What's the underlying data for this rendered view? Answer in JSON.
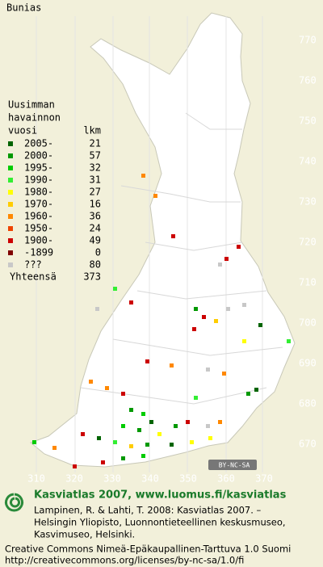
{
  "title": "Bunias",
  "legend": {
    "heading": [
      "Uusimman",
      "havainnon"
    ],
    "col_heads": [
      "vuosi",
      "lkm"
    ],
    "rows": [
      {
        "period": "2005-",
        "count": 21,
        "color": "#006400"
      },
      {
        "period": "2000-",
        "count": 57,
        "color": "#009900"
      },
      {
        "period": "1995-",
        "count": 32,
        "color": "#00cc00"
      },
      {
        "period": "1990-",
        "count": 31,
        "color": "#33ee33"
      },
      {
        "period": "1980-",
        "count": 27,
        "color": "#ffff00"
      },
      {
        "period": "1970-",
        "count": 16,
        "color": "#ffcc00"
      },
      {
        "period": "1960-",
        "count": 36,
        "color": "#ff8800"
      },
      {
        "period": "1950-",
        "count": 24,
        "color": "#ee4400"
      },
      {
        "period": "1900-",
        "count": 49,
        "color": "#cc0000"
      },
      {
        "period": "-1899",
        "count": 0,
        "color": "#800000"
      },
      {
        "period": "???",
        "count": 80,
        "color": "#c8c8c8"
      }
    ],
    "total": {
      "label": "Yhteensä",
      "count": 373
    }
  },
  "y_labels": [
    770,
    760,
    750,
    740,
    730,
    720,
    710,
    700,
    690,
    680,
    670
  ],
  "x_labels": [
    310,
    320,
    330,
    340,
    350,
    360,
    370
  ],
  "cc_badge": "BY-NC-SA",
  "footer": {
    "site": "Kasviatlas 2007, www.luomus.fi/kasviatlas",
    "citation": [
      "Lampinen, R. & Lahti, T. 2008: Kasviatlas 2007. –",
      "Helsingin Yliopisto, Luonnontieteellinen keskusmuseo,",
      "Kasvimuseo, Helsinki."
    ],
    "license": [
      "Creative Commons Nimeä-Epäkaupallinen-Tarttuva 1.0 Suomi",
      "http://creativecommons.org/licenses/by-nc-sa/1.0/fi"
    ]
  }
}
